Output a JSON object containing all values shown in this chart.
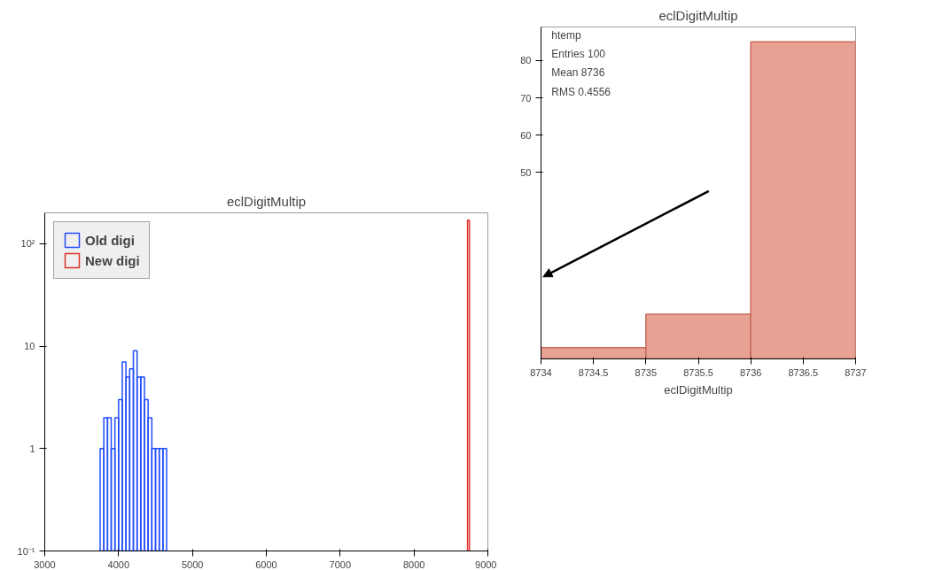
{
  "chart_data": [
    {
      "type": "histogram",
      "title": "eclDigitMultip",
      "log": "y",
      "grid": false,
      "legend": "top left",
      "xlim": [
        3000,
        9000
      ],
      "xticks": [
        3000,
        4000,
        5000,
        6000,
        7000,
        8000,
        9000
      ],
      "ylim": [
        0.1,
        200
      ],
      "yticks": [
        {
          "value": 0.1,
          "label": "10⁻¹"
        },
        1,
        10,
        {
          "value": 100,
          "label": "10²"
        }
      ],
      "bins": [
        3750,
        3800,
        3850,
        3900,
        3950,
        4000,
        4050,
        4100,
        4150,
        4200,
        4250,
        4300,
        4350,
        4400,
        4450,
        4500,
        4550,
        4600,
        4650,
        8725,
        8750
      ],
      "series": [
        {
          "name": "Old digi",
          "color": "#1f4bff",
          "values": [
            1,
            2,
            2,
            1,
            2,
            3,
            7,
            5,
            6,
            9,
            5,
            5,
            3,
            2,
            1,
            1,
            1,
            1,
            null,
            null
          ]
        },
        {
          "name": "New digi",
          "color": "#e0302a",
          "values": [
            null,
            null,
            null,
            null,
            null,
            null,
            null,
            null,
            null,
            null,
            null,
            null,
            null,
            null,
            null,
            null,
            null,
            null,
            null,
            170
          ]
        }
      ]
    },
    {
      "type": "histogram",
      "title": "eclDigitMultip",
      "xlabel": "eclDigitMultip",
      "grid": false,
      "color": "#e8a294",
      "xlim": [
        8734,
        8737
      ],
      "xticks": [
        8734,
        8734.5,
        8735,
        8735.5,
        8736,
        8736.5,
        8737
      ],
      "ylim": [
        0,
        89
      ],
      "yticks": [
        50,
        60,
        70,
        80
      ],
      "bins": [
        8734,
        8735,
        8736,
        8737
      ],
      "values": [
        3,
        12,
        85
      ],
      "annotations": [
        "htemp",
        "Entries 100",
        "Mean 8736",
        "RMS 0.4556"
      ]
    }
  ]
}
